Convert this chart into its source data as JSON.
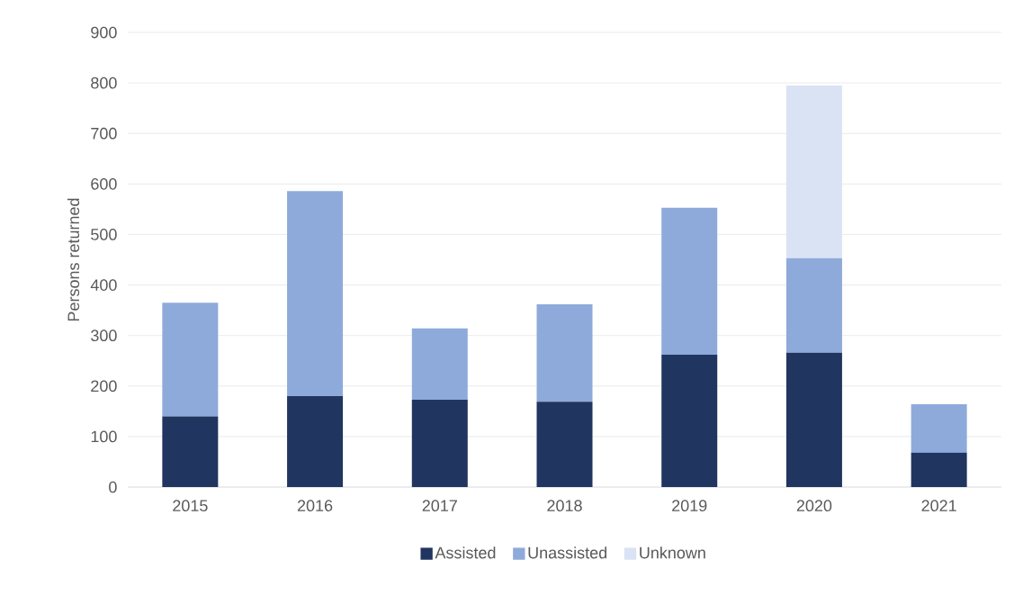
{
  "chart_data": {
    "type": "bar",
    "stacked": true,
    "ylabel": "Persons returned",
    "categories": [
      "2015",
      "2016",
      "2017",
      "2018",
      "2019",
      "2020",
      "2021"
    ],
    "series": [
      {
        "name": "Assisted",
        "color": "#203560",
        "values": [
          140,
          180,
          173,
          169,
          262,
          266,
          68
        ]
      },
      {
        "name": "Unassisted",
        "color": "#8eaadb",
        "values": [
          225,
          406,
          141,
          193,
          291,
          187,
          96
        ]
      },
      {
        "name": "Unknown",
        "color": "#dae3f3",
        "values": [
          0,
          0,
          0,
          0,
          0,
          342,
          0
        ]
      }
    ],
    "ylim": [
      0,
      900
    ],
    "yticks": [
      0,
      100,
      200,
      300,
      400,
      500,
      600,
      700,
      800,
      900
    ],
    "grid": "y",
    "legend": "bottom"
  }
}
